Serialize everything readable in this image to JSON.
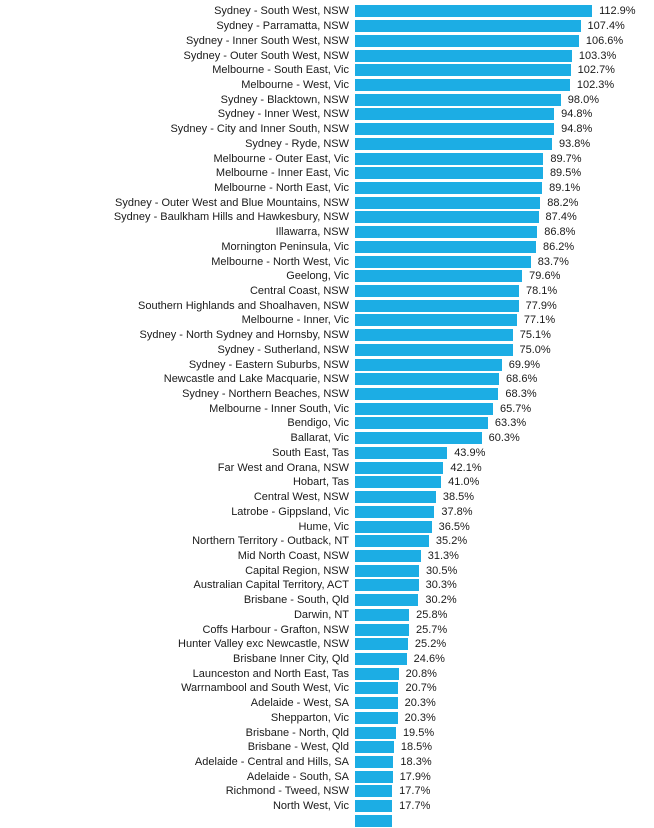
{
  "chart_data": {
    "type": "bar",
    "orientation": "horizontal",
    "title": "",
    "xlabel": "",
    "ylabel": "",
    "value_suffix": "%",
    "xlim": [
      0,
      115
    ],
    "grid": false,
    "axes_visible": false,
    "legend": null,
    "bar_color": "#1CADE4",
    "text_color": "#1a1a1a",
    "background_color": "#ffffff",
    "rows": [
      {
        "label": "Sydney - South West, NSW",
        "value": 112.9
      },
      {
        "label": "Sydney - Parramatta, NSW",
        "value": 107.4
      },
      {
        "label": "Sydney - Inner South West, NSW",
        "value": 106.6
      },
      {
        "label": "Sydney - Outer South West, NSW",
        "value": 103.3
      },
      {
        "label": "Melbourne - South East, Vic",
        "value": 102.7
      },
      {
        "label": "Melbourne - West, Vic",
        "value": 102.3
      },
      {
        "label": "Sydney - Blacktown, NSW",
        "value": 98.0
      },
      {
        "label": "Sydney - Inner West, NSW",
        "value": 94.8
      },
      {
        "label": "Sydney - City and Inner South, NSW",
        "value": 94.8
      },
      {
        "label": "Sydney - Ryde, NSW",
        "value": 93.8
      },
      {
        "label": "Melbourne - Outer East, Vic",
        "value": 89.7
      },
      {
        "label": "Melbourne - Inner East, Vic",
        "value": 89.5
      },
      {
        "label": "Melbourne - North East, Vic",
        "value": 89.1
      },
      {
        "label": "Sydney - Outer West and Blue Mountains, NSW",
        "value": 88.2
      },
      {
        "label": "Sydney - Baulkham Hills and Hawkesbury, NSW",
        "value": 87.4
      },
      {
        "label": "Illawarra, NSW",
        "value": 86.8
      },
      {
        "label": "Mornington Peninsula, Vic",
        "value": 86.2
      },
      {
        "label": "Melbourne - North West, Vic",
        "value": 83.7
      },
      {
        "label": "Geelong, Vic",
        "value": 79.6
      },
      {
        "label": "Central Coast, NSW",
        "value": 78.1
      },
      {
        "label": "Southern Highlands and Shoalhaven, NSW",
        "value": 77.9
      },
      {
        "label": "Melbourne - Inner, Vic",
        "value": 77.1
      },
      {
        "label": "Sydney - North Sydney and Hornsby, NSW",
        "value": 75.1
      },
      {
        "label": "Sydney - Sutherland, NSW",
        "value": 75.0
      },
      {
        "label": "Sydney - Eastern Suburbs, NSW",
        "value": 69.9
      },
      {
        "label": "Newcastle and Lake Macquarie, NSW",
        "value": 68.6
      },
      {
        "label": "Sydney - Northern Beaches, NSW",
        "value": 68.3
      },
      {
        "label": "Melbourne - Inner South, Vic",
        "value": 65.7
      },
      {
        "label": "Bendigo, Vic",
        "value": 63.3
      },
      {
        "label": "Ballarat, Vic",
        "value": 60.3
      },
      {
        "label": "South East, Tas",
        "value": 43.9
      },
      {
        "label": "Far West and Orana, NSW",
        "value": 42.1
      },
      {
        "label": "Hobart, Tas",
        "value": 41.0
      },
      {
        "label": "Central West, NSW",
        "value": 38.5
      },
      {
        "label": "Latrobe - Gippsland, Vic",
        "value": 37.8
      },
      {
        "label": "Hume, Vic",
        "value": 36.5
      },
      {
        "label": "Northern Territory - Outback, NT",
        "value": 35.2
      },
      {
        "label": "Mid North Coast, NSW",
        "value": 31.3
      },
      {
        "label": "Capital Region, NSW",
        "value": 30.5
      },
      {
        "label": "Australian Capital Territory, ACT",
        "value": 30.3
      },
      {
        "label": "Brisbane - South, Qld",
        "value": 30.2
      },
      {
        "label": "Darwin, NT",
        "value": 25.8
      },
      {
        "label": "Coffs Harbour - Grafton, NSW",
        "value": 25.7
      },
      {
        "label": "Hunter Valley exc Newcastle, NSW",
        "value": 25.2
      },
      {
        "label": "Brisbane Inner City, Qld",
        "value": 24.6
      },
      {
        "label": "Launceston and North East, Tas",
        "value": 20.8
      },
      {
        "label": "Warrnambool and South West, Vic",
        "value": 20.7
      },
      {
        "label": "Adelaide - West, SA",
        "value": 20.3
      },
      {
        "label": "Shepparton, Vic",
        "value": 20.3
      },
      {
        "label": "Brisbane - North, Qld",
        "value": 19.5
      },
      {
        "label": "Brisbane - West, Qld",
        "value": 18.5
      },
      {
        "label": "Adelaide - Central and Hills, SA",
        "value": 18.3
      },
      {
        "label": "Adelaide - South, SA",
        "value": 17.9
      },
      {
        "label": "Richmond - Tweed, NSW",
        "value": 17.7
      },
      {
        "label": "North West, Vic",
        "value": 17.7
      },
      {
        "label": "",
        "value": 17.7,
        "clipped": true,
        "value_label": ""
      }
    ]
  }
}
